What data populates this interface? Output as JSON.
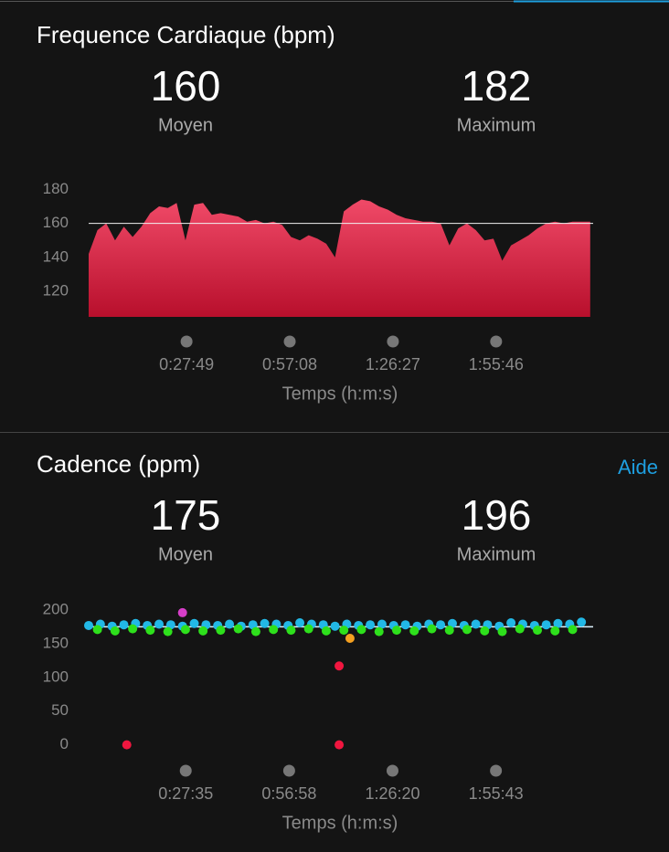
{
  "chart_data": [
    {
      "type": "area",
      "title": "Frequence Cardiaque (bpm)",
      "stats": [
        {
          "value": 160,
          "label": "Moyen"
        },
        {
          "value": 182,
          "label": "Maximum"
        }
      ],
      "xlabel": "Temps (h:m:s)",
      "x": [
        0,
        150,
        300,
        450,
        600,
        750,
        900,
        1050,
        1200,
        1350,
        1500,
        1650,
        1800,
        1950,
        2100,
        2250,
        2400,
        2550,
        2700,
        2850,
        3000,
        3150,
        3300,
        3450,
        3600,
        3750,
        3900,
        4050,
        4200,
        4350,
        4500,
        4650,
        4800,
        4950,
        5100,
        5250,
        5400,
        5550,
        5700,
        5850,
        6000,
        6150,
        6300,
        6450,
        6600,
        6750,
        6900,
        7050,
        7200,
        7350,
        7500,
        7650,
        7800,
        7950,
        8100,
        8250,
        8400,
        8550
      ],
      "values": [
        142,
        156,
        160,
        150,
        158,
        152,
        158,
        166,
        170,
        169,
        172,
        150,
        171,
        172,
        165,
        166,
        165,
        164,
        161,
        162,
        160,
        161,
        159,
        152,
        150,
        153,
        151,
        148,
        140,
        167,
        171,
        174,
        173,
        170,
        168,
        165,
        163,
        162,
        161,
        161,
        160,
        147,
        157,
        160,
        156,
        150,
        151,
        138,
        147,
        150,
        153,
        157,
        160,
        161,
        160,
        161,
        161,
        161
      ],
      "color": "#e8304f",
      "xlim": [
        0,
        8600
      ],
      "ylim": [
        105,
        185
      ],
      "xticks": [
        {
          "value": 1669,
          "label": "0:27:49"
        },
        {
          "value": 3428,
          "label": "0:57:08"
        },
        {
          "value": 5187,
          "label": "1:26:27"
        },
        {
          "value": 6946,
          "label": "1:55:46"
        }
      ],
      "yticks": [
        120,
        140,
        160,
        180
      ]
    },
    {
      "type": "scatter",
      "title": "Cadence (ppm)",
      "stats": [
        {
          "value": 175,
          "label": "Moyen"
        },
        {
          "value": 196,
          "label": "Maximum"
        }
      ],
      "xlabel": "Temps (h:m:s)",
      "series": [
        {
          "color": "#22b8e6",
          "x": [
            0,
            200,
            400,
            600,
            800,
            1000,
            1200,
            1400,
            1600,
            1800,
            2000,
            2200,
            2400,
            2600,
            2800,
            3000,
            3200,
            3400,
            3600,
            3800,
            4000,
            4200,
            4400,
            4600,
            4800,
            5000,
            5200,
            5400,
            5600,
            5800,
            6000,
            6200,
            6400,
            6600,
            6800,
            7000,
            7200,
            7400,
            7600,
            7800,
            8000,
            8200,
            8400
          ],
          "values": [
            177,
            179,
            176,
            178,
            180,
            177,
            179,
            178,
            176,
            180,
            178,
            177,
            179,
            176,
            178,
            180,
            179,
            177,
            181,
            179,
            178,
            176,
            179,
            177,
            178,
            179,
            177,
            178,
            176,
            179,
            178,
            180,
            177,
            179,
            178,
            176,
            181,
            179,
            177,
            178,
            180,
            179,
            182
          ]
        },
        {
          "color": "#2ee01c",
          "x": [
            150,
            450,
            750,
            1050,
            1350,
            1650,
            1950,
            2250,
            2550,
            2850,
            3150,
            3450,
            3750,
            4050,
            4350,
            4650,
            4950,
            5250,
            5550,
            5850,
            6150,
            6450,
            6750,
            7050,
            7350,
            7650,
            7950,
            8250
          ],
          "values": [
            171,
            169,
            172,
            170,
            168,
            171,
            169,
            170,
            172,
            168,
            171,
            170,
            172,
            169,
            170,
            171,
            168,
            170,
            169,
            172,
            170,
            171,
            169,
            168,
            172,
            170,
            169,
            171
          ]
        },
        {
          "color": "#d63ec8",
          "x": [
            1600
          ],
          "values": [
            196
          ]
        },
        {
          "color": "#f5a020",
          "x": [
            4455
          ],
          "values": [
            158
          ]
        },
        {
          "color": "#f0163f",
          "x": [
            650,
            4270,
            4270
          ],
          "values": [
            0,
            117,
            0
          ]
        }
      ],
      "xlim": [
        0,
        8600
      ],
      "ylim": [
        -10,
        210
      ],
      "xticks": [
        {
          "value": 1655,
          "label": "0:27:35"
        },
        {
          "value": 3418,
          "label": "0:56:58"
        },
        {
          "value": 5180,
          "label": "1:26:20"
        },
        {
          "value": 6943,
          "label": "1:55:43"
        }
      ],
      "yticks": [
        0,
        50,
        100,
        150,
        200
      ]
    }
  ],
  "links": {
    "help": "Aide"
  }
}
